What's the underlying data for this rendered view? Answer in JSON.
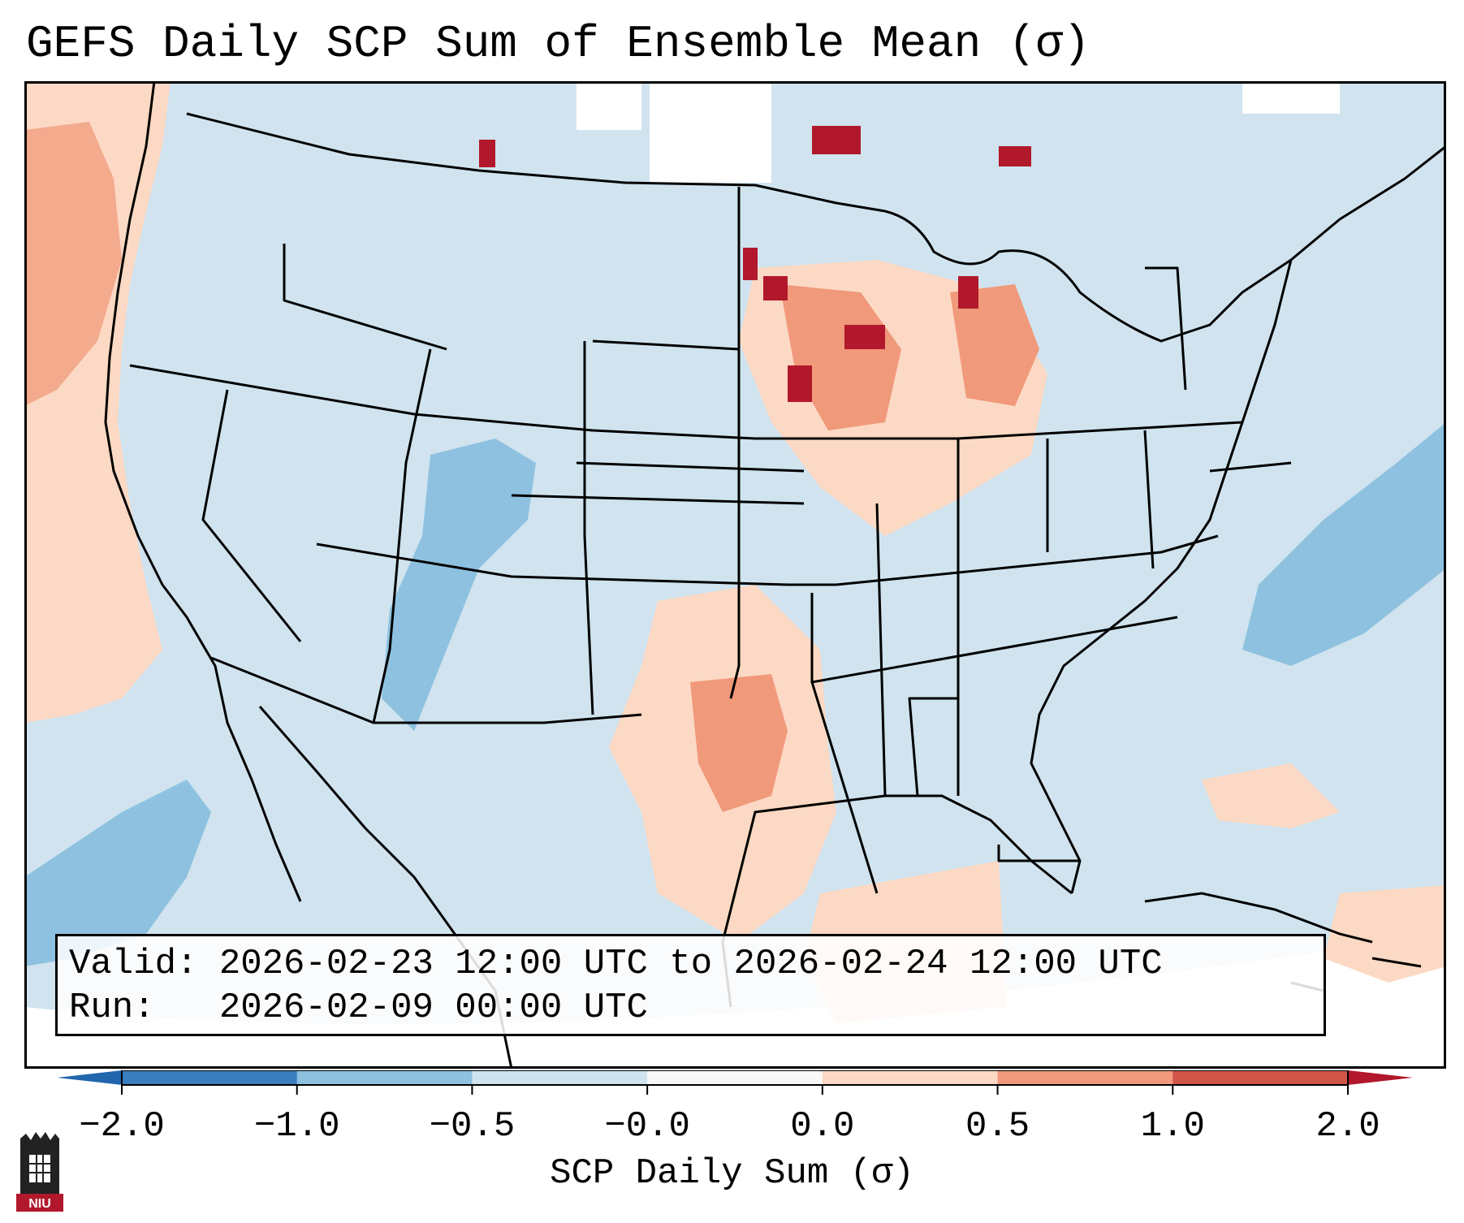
{
  "title": "GEFS Daily SCP Sum of Ensemble Mean (σ)",
  "legend": {
    "valid_label": "Valid:",
    "valid_value": "2026-02-23 12:00 UTC to 2026-02-24 12:00 UTC",
    "run_label": "Run:",
    "run_value": "2026-02-09 00:00 UTC"
  },
  "colorbar": {
    "label": "SCP Daily Sum (σ)",
    "ticks": [
      "−2.0",
      "−1.0",
      "−0.5",
      "−0.0",
      "0.0",
      "0.5",
      "1.0",
      "2.0"
    ],
    "colors": [
      "#3a7ebf",
      "#8ec1df",
      "#cfe3ef",
      "#f8f8f8",
      "#fcd9c4",
      "#f0997b",
      "#d05548"
    ],
    "extend_low": "#2166ac",
    "extend_high": "#b2182b"
  },
  "map": {
    "base_color": "#d0e3ef",
    "neutral_color": "#ffffff",
    "light_red": "#fcd9c4",
    "mid_red": "#f0997b",
    "dark_red": "#b2182b",
    "light_blue": "#8ec1df"
  },
  "logo_text": "NIU",
  "logo_color": "#b2182b"
}
